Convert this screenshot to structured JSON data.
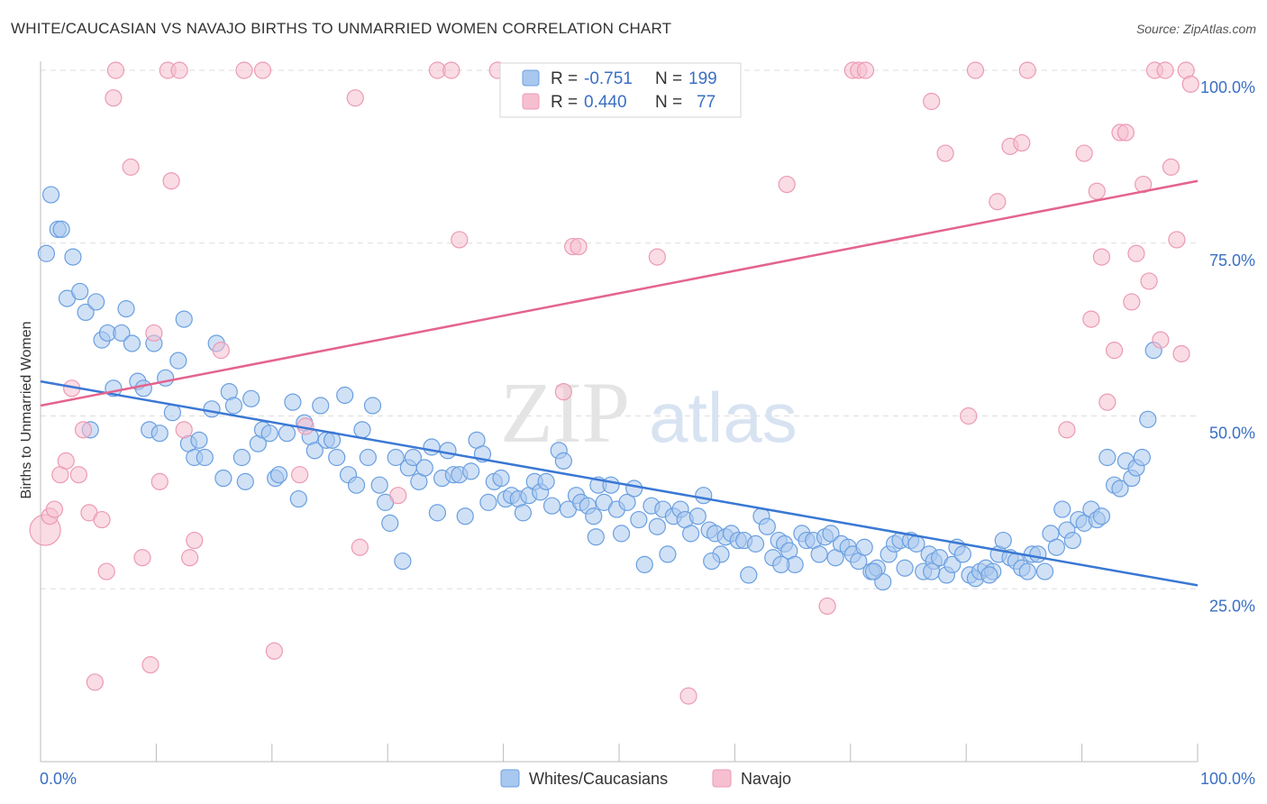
{
  "title": "WHITE/CAUCASIAN VS NAVAJO BIRTHS TO UNMARRIED WOMEN CORRELATION CHART",
  "source": "Source: ZipAtlas.com",
  "watermark": {
    "zip": "ZIP",
    "atlas": "atlas"
  },
  "colors": {
    "blue_fill": "#a9c8ef",
    "blue_stroke": "#6a9fe0",
    "blue_line": "#3a78d4",
    "pink_fill": "#f6bfd0",
    "pink_stroke": "#ec9ab4",
    "pink_line": "#e4648e",
    "axis_text": "#3a6fc4",
    "grid": "#dddddd"
  },
  "legend": {
    "rows": [
      {
        "r_label": "R =",
        "r_value": "-0.751",
        "n_label": "N =",
        "n_value": "199"
      },
      {
        "r_label": "R =",
        "r_value": "0.440",
        "n_label": "N =",
        "n_value": "77"
      }
    ]
  },
  "bottom_legend": [
    "Whites/Caucasians",
    "Navajo"
  ],
  "chart_data": {
    "type": "scatter",
    "xlabel": "",
    "ylabel": "Births to Unmarried Women",
    "xlim": [
      0,
      100
    ],
    "ylim": [
      0,
      100
    ],
    "x_tick_labels": [
      "0.0%",
      "100.0%"
    ],
    "y_tick_labels": [
      "25.0%",
      "50.0%",
      "75.0%",
      "100.0%"
    ],
    "y_ticks": [
      25,
      50,
      75,
      100
    ],
    "grid": "horizontal dashed",
    "legend_position": "top-center",
    "series": [
      {
        "name": "Whites/Caucasians",
        "trend": {
          "x": [
            0,
            100
          ],
          "y": [
            55.0,
            25.5
          ]
        },
        "points": [
          [
            0.5,
            73.5
          ],
          [
            0.9,
            82.0
          ],
          [
            1.5,
            77.0
          ],
          [
            1.8,
            77.0
          ],
          [
            2.3,
            67.0
          ],
          [
            2.8,
            73.0
          ],
          [
            3.4,
            68.0
          ],
          [
            3.9,
            65.0
          ],
          [
            4.3,
            48.0
          ],
          [
            4.8,
            66.5
          ],
          [
            5.3,
            61.0
          ],
          [
            5.8,
            62.0
          ],
          [
            6.3,
            54.0
          ],
          [
            7.0,
            62.0
          ],
          [
            7.4,
            65.5
          ],
          [
            7.9,
            60.5
          ],
          [
            8.4,
            55.0
          ],
          [
            8.9,
            54.0
          ],
          [
            9.4,
            48.0
          ],
          [
            9.8,
            60.5
          ],
          [
            10.3,
            47.5
          ],
          [
            10.8,
            55.5
          ],
          [
            11.4,
            50.5
          ],
          [
            11.9,
            58.0
          ],
          [
            12.4,
            64.0
          ],
          [
            12.8,
            46.0
          ],
          [
            13.3,
            44.0
          ],
          [
            13.7,
            46.5
          ],
          [
            14.2,
            44.0
          ],
          [
            14.8,
            51.0
          ],
          [
            15.2,
            60.5
          ],
          [
            15.8,
            41.0
          ],
          [
            16.3,
            53.5
          ],
          [
            16.7,
            51.5
          ],
          [
            17.4,
            44.0
          ],
          [
            17.7,
            40.5
          ],
          [
            18.2,
            52.5
          ],
          [
            18.8,
            46.0
          ],
          [
            19.2,
            48.0
          ],
          [
            19.8,
            47.5
          ],
          [
            20.3,
            41.0
          ],
          [
            20.6,
            41.5
          ],
          [
            21.3,
            47.5
          ],
          [
            21.8,
            52.0
          ],
          [
            22.3,
            38.0
          ],
          [
            22.8,
            49.0
          ],
          [
            23.3,
            47.0
          ],
          [
            23.7,
            45.0
          ],
          [
            24.2,
            51.5
          ],
          [
            24.7,
            46.5
          ],
          [
            25.2,
            46.5
          ],
          [
            25.6,
            44.0
          ],
          [
            26.3,
            53.0
          ],
          [
            26.6,
            41.5
          ],
          [
            27.3,
            40.0
          ],
          [
            27.8,
            48.0
          ],
          [
            28.3,
            44.0
          ],
          [
            28.7,
            51.5
          ],
          [
            29.3,
            40.0
          ],
          [
            29.8,
            37.5
          ],
          [
            30.2,
            34.5
          ],
          [
            30.7,
            44.0
          ],
          [
            31.3,
            29.0
          ],
          [
            31.8,
            42.5
          ],
          [
            32.2,
            44.0
          ],
          [
            32.7,
            40.5
          ],
          [
            33.2,
            42.5
          ],
          [
            33.8,
            45.5
          ],
          [
            34.3,
            36.0
          ],
          [
            34.7,
            41.0
          ],
          [
            35.2,
            45.0
          ],
          [
            35.7,
            41.5
          ],
          [
            36.2,
            41.5
          ],
          [
            36.7,
            35.5
          ],
          [
            37.2,
            42.0
          ],
          [
            37.7,
            46.5
          ],
          [
            38.2,
            44.5
          ],
          [
            38.7,
            37.5
          ],
          [
            39.2,
            40.5
          ],
          [
            39.8,
            41.0
          ],
          [
            40.2,
            38.0
          ],
          [
            40.7,
            38.5
          ],
          [
            41.3,
            38.0
          ],
          [
            41.7,
            36.0
          ],
          [
            42.2,
            38.5
          ],
          [
            42.7,
            40.5
          ],
          [
            43.2,
            39.0
          ],
          [
            43.7,
            40.5
          ],
          [
            44.2,
            37.0
          ],
          [
            44.8,
            45.0
          ],
          [
            45.2,
            43.5
          ],
          [
            45.6,
            36.5
          ],
          [
            46.3,
            38.5
          ],
          [
            46.7,
            37.5
          ],
          [
            47.3,
            37.0
          ],
          [
            47.8,
            35.5
          ],
          [
            48.2,
            40.0
          ],
          [
            48.7,
            37.5
          ],
          [
            49.3,
            40.0
          ],
          [
            49.8,
            36.5
          ],
          [
            50.2,
            33.0
          ],
          [
            50.7,
            37.5
          ],
          [
            51.3,
            39.5
          ],
          [
            51.7,
            35.0
          ],
          [
            52.2,
            28.5
          ],
          [
            52.8,
            37.0
          ],
          [
            53.3,
            34.0
          ],
          [
            53.8,
            36.5
          ],
          [
            54.2,
            30.0
          ],
          [
            54.7,
            35.5
          ],
          [
            55.3,
            36.5
          ],
          [
            55.7,
            35.0
          ],
          [
            56.2,
            33.0
          ],
          [
            56.8,
            35.5
          ],
          [
            57.3,
            38.5
          ],
          [
            57.8,
            33.5
          ],
          [
            58.3,
            33.0
          ],
          [
            58.8,
            30.0
          ],
          [
            59.2,
            32.5
          ],
          [
            59.7,
            33.0
          ],
          [
            60.3,
            32.0
          ],
          [
            60.8,
            32.0
          ],
          [
            61.2,
            27.0
          ],
          [
            61.8,
            31.5
          ],
          [
            62.3,
            35.5
          ],
          [
            62.8,
            34.0
          ],
          [
            63.3,
            29.5
          ],
          [
            63.8,
            32.0
          ],
          [
            64.3,
            31.5
          ],
          [
            64.7,
            30.5
          ],
          [
            65.2,
            28.5
          ],
          [
            65.8,
            33.0
          ],
          [
            66.2,
            32.0
          ],
          [
            66.8,
            32.0
          ],
          [
            67.3,
            30.0
          ],
          [
            67.8,
            32.5
          ],
          [
            68.3,
            33.0
          ],
          [
            68.7,
            29.5
          ],
          [
            69.2,
            31.5
          ],
          [
            69.8,
            31.0
          ],
          [
            70.2,
            30.0
          ],
          [
            70.7,
            29.0
          ],
          [
            71.2,
            31.0
          ],
          [
            71.8,
            27.5
          ],
          [
            72.3,
            28.0
          ],
          [
            72.8,
            26.0
          ],
          [
            73.3,
            30.0
          ],
          [
            73.8,
            31.5
          ],
          [
            74.3,
            32.0
          ],
          [
            74.7,
            28.0
          ],
          [
            75.2,
            32.0
          ],
          [
            75.7,
            31.5
          ],
          [
            76.3,
            27.5
          ],
          [
            76.8,
            30.0
          ],
          [
            77.2,
            29.0
          ],
          [
            77.7,
            29.5
          ],
          [
            78.3,
            27.0
          ],
          [
            78.8,
            28.5
          ],
          [
            79.2,
            31.0
          ],
          [
            79.7,
            30.0
          ],
          [
            80.3,
            27.0
          ],
          [
            80.8,
            26.5
          ],
          [
            81.2,
            27.5
          ],
          [
            81.7,
            28.0
          ],
          [
            82.3,
            27.5
          ],
          [
            82.8,
            30.0
          ],
          [
            83.2,
            32.0
          ],
          [
            83.8,
            29.5
          ],
          [
            84.3,
            29.0
          ],
          [
            84.8,
            28.0
          ],
          [
            85.3,
            27.5
          ],
          [
            85.7,
            30.0
          ],
          [
            86.2,
            30.0
          ],
          [
            86.8,
            27.5
          ],
          [
            87.3,
            33.0
          ],
          [
            87.8,
            31.0
          ],
          [
            88.3,
            36.5
          ],
          [
            88.7,
            33.5
          ],
          [
            89.2,
            32.0
          ],
          [
            89.7,
            35.0
          ],
          [
            90.2,
            34.5
          ],
          [
            90.8,
            36.5
          ],
          [
            91.3,
            35.0
          ],
          [
            91.7,
            35.5
          ],
          [
            92.2,
            44.0
          ],
          [
            92.8,
            40.0
          ],
          [
            93.3,
            39.5
          ],
          [
            93.8,
            43.5
          ],
          [
            94.3,
            41.0
          ],
          [
            94.7,
            42.5
          ],
          [
            95.2,
            44.0
          ],
          [
            95.7,
            49.5
          ],
          [
            96.2,
            59.5
          ],
          [
            82.0,
            27.0
          ],
          [
            77.0,
            27.5
          ],
          [
            72.0,
            27.5
          ],
          [
            64.0,
            28.5
          ],
          [
            58.0,
            29.0
          ],
          [
            48.0,
            32.5
          ]
        ]
      },
      {
        "name": "Navajo",
        "trend": {
          "x": [
            0,
            100
          ],
          "y": [
            51.5,
            84.0
          ]
        },
        "points": [
          [
            0.4,
            33.5
          ],
          [
            0.8,
            35.5
          ],
          [
            1.2,
            36.5
          ],
          [
            1.7,
            41.5
          ],
          [
            2.2,
            43.5
          ],
          [
            2.7,
            54.0
          ],
          [
            3.3,
            41.5
          ],
          [
            3.7,
            48.0
          ],
          [
            4.2,
            36.0
          ],
          [
            4.7,
            11.5
          ],
          [
            5.3,
            35.0
          ],
          [
            5.7,
            27.5
          ],
          [
            6.3,
            96.0
          ],
          [
            6.5,
            100.0
          ],
          [
            7.8,
            86.0
          ],
          [
            8.8,
            29.5
          ],
          [
            9.5,
            14.0
          ],
          [
            9.8,
            62.0
          ],
          [
            10.3,
            40.5
          ],
          [
            11.0,
            100.0
          ],
          [
            11.3,
            84.0
          ],
          [
            12.0,
            100.0
          ],
          [
            12.4,
            48.0
          ],
          [
            12.9,
            29.5
          ],
          [
            13.3,
            32.0
          ],
          [
            15.6,
            59.5
          ],
          [
            17.6,
            100.0
          ],
          [
            19.2,
            100.0
          ],
          [
            20.2,
            16.0
          ],
          [
            22.4,
            41.5
          ],
          [
            22.9,
            48.5
          ],
          [
            27.2,
            96.0
          ],
          [
            27.6,
            31.0
          ],
          [
            30.9,
            38.5
          ],
          [
            34.3,
            100.0
          ],
          [
            35.5,
            100.0
          ],
          [
            36.2,
            75.5
          ],
          [
            39.5,
            100.0
          ],
          [
            45.2,
            53.5
          ],
          [
            46.0,
            74.5
          ],
          [
            46.5,
            74.5
          ],
          [
            53.3,
            73.0
          ],
          [
            56.0,
            9.5
          ],
          [
            64.5,
            83.5
          ],
          [
            68.0,
            22.5
          ],
          [
            70.2,
            100.0
          ],
          [
            70.7,
            100.0
          ],
          [
            71.3,
            100.0
          ],
          [
            77.0,
            95.5
          ],
          [
            78.2,
            88.0
          ],
          [
            80.2,
            50.0
          ],
          [
            80.8,
            100.0
          ],
          [
            82.7,
            81.0
          ],
          [
            83.8,
            89.0
          ],
          [
            84.8,
            89.5
          ],
          [
            85.3,
            100.0
          ],
          [
            88.7,
            48.0
          ],
          [
            90.2,
            88.0
          ],
          [
            90.8,
            64.0
          ],
          [
            91.3,
            82.5
          ],
          [
            91.7,
            73.0
          ],
          [
            92.2,
            52.0
          ],
          [
            92.8,
            59.5
          ],
          [
            93.3,
            91.0
          ],
          [
            93.8,
            91.0
          ],
          [
            94.3,
            66.5
          ],
          [
            94.7,
            73.5
          ],
          [
            95.3,
            83.5
          ],
          [
            95.8,
            69.5
          ],
          [
            96.3,
            100.0
          ],
          [
            96.8,
            61.0
          ],
          [
            97.2,
            100.0
          ],
          [
            97.7,
            86.0
          ],
          [
            98.2,
            75.5
          ],
          [
            98.6,
            59.0
          ],
          [
            99.0,
            100.0
          ],
          [
            99.4,
            98.0
          ]
        ]
      }
    ]
  }
}
